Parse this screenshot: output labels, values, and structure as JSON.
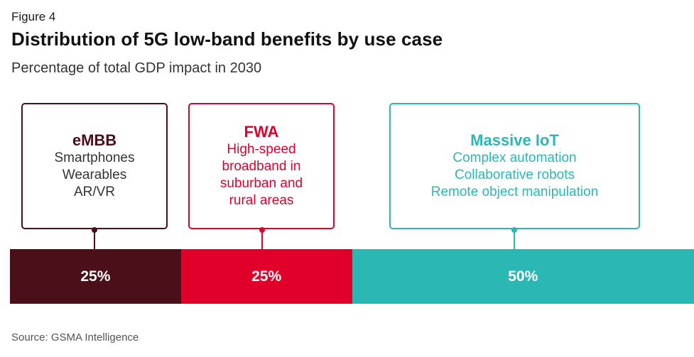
{
  "figure_label": "Figure 4",
  "title": "Distribution of 5G low-band benefits by use case",
  "subtitle": "Percentage of total GDP impact in 2030",
  "source": "Source: GSMA Intelligence",
  "chart_data": {
    "type": "bar",
    "orientation": "horizontal-stacked-100",
    "title": "Distribution of 5G low-band benefits by use case",
    "subtitle": "Percentage of total GDP impact in 2030",
    "unit": "%",
    "categories": [
      "eMBB",
      "FWA",
      "Massive IoT"
    ],
    "values": [
      25,
      25,
      50
    ],
    "labels": [
      "25%",
      "25%",
      "50%"
    ],
    "colors": [
      "#4a0f18",
      "#e0002a",
      "#2bb7b4"
    ],
    "annotations": [
      {
        "title": "eMBB",
        "lines": [
          "Smartphones",
          "Wearables",
          "AR/VR"
        ]
      },
      {
        "title": "FWA",
        "lines": [
          "High-speed",
          "broadband in",
          "suburban and",
          "rural areas"
        ]
      },
      {
        "title": "Massive IoT",
        "lines": [
          "Complex automation",
          "Collaborative robots",
          "Remote object manipulation"
        ]
      }
    ]
  }
}
